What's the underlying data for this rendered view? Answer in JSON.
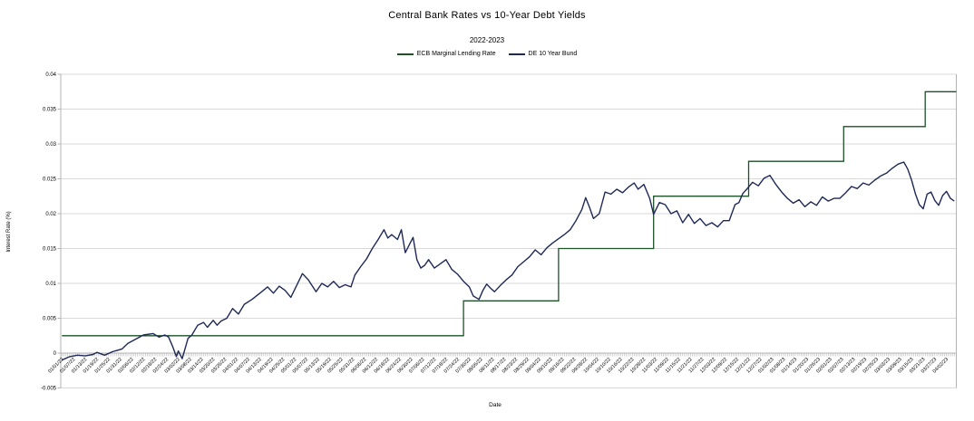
{
  "header": {
    "title": "Central Bank Rates vs 10-Year Debt Yields",
    "subtitle": "2022-2023"
  },
  "axes": {
    "x_label": "Date",
    "y_label": "Interest Rate (%)"
  },
  "colors": {
    "grid": "#d9d9d9",
    "axis": "#b3b3b3",
    "text": "#000000",
    "ecb_green": "#1d5128",
    "bund_navy": "#1f2957"
  },
  "chart_data": {
    "type": "line",
    "title": "Central Bank Rates vs 10-Year Debt Yields",
    "subtitle": "2022-2023",
    "xlabel": "Date",
    "ylabel": "Interest Rate (%)",
    "ylim": [
      -0.005,
      0.04
    ],
    "grid": "horizontal",
    "legend_position": "top-center",
    "y_tick_labels": [
      "-0.005",
      "0",
      "0.005",
      "0.01",
      "0.015",
      "0.02",
      "0.025",
      "0.03",
      "0.035",
      "0.04"
    ],
    "y_tick_values": [
      -0.005,
      0,
      0.005,
      0.01,
      0.015,
      0.02,
      0.025,
      0.03,
      0.035,
      0.04
    ],
    "x_axis": {
      "unit": "days since 01/01/22",
      "domain_days": [
        0,
        461
      ],
      "tick_interval_days": 6,
      "tick_labels": [
        "01/01/22",
        "01/07/22",
        "01/13/22",
        "01/19/22",
        "01/25/22",
        "01/31/22",
        "02/06/22",
        "02/12/22",
        "02/18/22",
        "02/24/22",
        "03/02/22",
        "03/08/22",
        "03/14/22",
        "03/20/22",
        "03/26/22",
        "04/01/22",
        "04/07/22",
        "04/13/22",
        "04/19/22",
        "04/25/22",
        "05/01/22",
        "05/07/22",
        "05/13/22",
        "05/19/22",
        "05/25/22",
        "05/31/22",
        "06/06/22",
        "06/12/22",
        "06/18/22",
        "06/24/22",
        "06/30/22",
        "07/06/22",
        "07/12/22",
        "07/18/22",
        "07/24/22",
        "07/30/22",
        "08/05/22",
        "08/11/22",
        "08/17/22",
        "08/23/22",
        "08/29/22",
        "09/04/22",
        "09/10/22",
        "09/16/22",
        "09/22/22",
        "09/28/22",
        "10/04/22",
        "10/10/22",
        "10/16/22",
        "10/22/22",
        "10/28/22",
        "11/03/22",
        "11/09/22",
        "11/15/22",
        "11/21/22",
        "11/27/22",
        "12/03/22",
        "12/09/22",
        "12/15/22",
        "12/21/22",
        "12/27/22",
        "01/02/23",
        "01/08/23",
        "01/14/23",
        "01/20/23",
        "01/26/23",
        "02/01/23",
        "02/07/23",
        "02/13/23",
        "02/19/23",
        "02/25/23",
        "03/03/23",
        "03/09/23",
        "03/15/23",
        "03/21/23",
        "03/27/23",
        "04/02/23"
      ]
    },
    "series": [
      {
        "name": "ECB Marginal Lending Rate",
        "color": "#1d5128",
        "style": "step",
        "points": [
          [
            0,
            0.0025
          ],
          [
            207,
            0.0025
          ],
          [
            207,
            0.0075
          ],
          [
            256,
            0.0075
          ],
          [
            256,
            0.015
          ],
          [
            305,
            0.015
          ],
          [
            305,
            0.0225
          ],
          [
            354,
            0.0225
          ],
          [
            354,
            0.0275
          ],
          [
            403,
            0.0275
          ],
          [
            403,
            0.0325
          ],
          [
            445,
            0.0325
          ],
          [
            445,
            0.0375
          ],
          [
            461,
            0.0375
          ]
        ]
      },
      {
        "name": "DE 10 Year Bund",
        "color": "#1f2957",
        "style": "line",
        "days": [
          0,
          4,
          8,
          12,
          16,
          18,
          22,
          26,
          31,
          34,
          38,
          42,
          47,
          50,
          53,
          55,
          57,
          59,
          60,
          62,
          65,
          67,
          70,
          73,
          75,
          78,
          80,
          82,
          85,
          88,
          91,
          94,
          98,
          103,
          106,
          109,
          112,
          115,
          118,
          121,
          124,
          127,
          131,
          134,
          137,
          140,
          143,
          146,
          149,
          151,
          154,
          157,
          160,
          163,
          166,
          168,
          170,
          173,
          175,
          177,
          179,
          181,
          183,
          185,
          187,
          189,
          192,
          195,
          198,
          201,
          204,
          207,
          210,
          212,
          215,
          217,
          219,
          221,
          223,
          226,
          229,
          232,
          235,
          238,
          241,
          244,
          247,
          250,
          253,
          256,
          259,
          262,
          265,
          268,
          270,
          272,
          274,
          277,
          280,
          283,
          286,
          289,
          292,
          295,
          297,
          300,
          303,
          305,
          308,
          311,
          314,
          317,
          320,
          323,
          326,
          329,
          332,
          335,
          338,
          341,
          344,
          347,
          349,
          351,
          353,
          356,
          359,
          362,
          365,
          368,
          371,
          374,
          377,
          380,
          383,
          386,
          389,
          392,
          395,
          398,
          401,
          404,
          407,
          410,
          413,
          416,
          419,
          422,
          425,
          428,
          431,
          434,
          436,
          438,
          440,
          442,
          444,
          446,
          448,
          450,
          452,
          454,
          456,
          458,
          460
        ],
        "values": [
          -0.001,
          -0.0005,
          -0.0003,
          -0.0004,
          -0.0002,
          0.0001,
          -0.0003,
          0.0002,
          0.0006,
          0.0014,
          0.002,
          0.0026,
          0.0028,
          0.0023,
          0.0026,
          0.0023,
          0.001,
          -0.0005,
          0.0003,
          -0.0008,
          0.0021,
          0.0026,
          0.004,
          0.0044,
          0.0037,
          0.0047,
          0.004,
          0.0046,
          0.005,
          0.0064,
          0.0056,
          0.007,
          0.0077,
          0.0088,
          0.0095,
          0.0086,
          0.0096,
          0.009,
          0.008,
          0.0097,
          0.0114,
          0.0105,
          0.0088,
          0.01,
          0.0095,
          0.0103,
          0.0094,
          0.0098,
          0.0095,
          0.0112,
          0.0124,
          0.0135,
          0.015,
          0.0163,
          0.0177,
          0.0165,
          0.017,
          0.0163,
          0.0177,
          0.0144,
          0.0155,
          0.0166,
          0.0134,
          0.0122,
          0.0126,
          0.0134,
          0.0122,
          0.0128,
          0.0134,
          0.012,
          0.0113,
          0.0103,
          0.0095,
          0.0082,
          0.0077,
          0.009,
          0.0099,
          0.0093,
          0.0088,
          0.0097,
          0.0105,
          0.0112,
          0.0124,
          0.0131,
          0.0138,
          0.0148,
          0.0141,
          0.0151,
          0.0158,
          0.0164,
          0.017,
          0.0177,
          0.019,
          0.0206,
          0.0223,
          0.0209,
          0.0193,
          0.02,
          0.0231,
          0.0228,
          0.0235,
          0.023,
          0.0238,
          0.0244,
          0.0235,
          0.0242,
          0.0222,
          0.0199,
          0.0216,
          0.0213,
          0.02,
          0.0204,
          0.0187,
          0.0199,
          0.0186,
          0.0193,
          0.0183,
          0.0187,
          0.0181,
          0.019,
          0.019,
          0.0213,
          0.0216,
          0.0229,
          0.0235,
          0.0245,
          0.024,
          0.0251,
          0.0255,
          0.0242,
          0.0231,
          0.0222,
          0.0215,
          0.022,
          0.021,
          0.0217,
          0.0212,
          0.0224,
          0.0218,
          0.0222,
          0.0222,
          0.023,
          0.0239,
          0.0236,
          0.0244,
          0.0241,
          0.0248,
          0.0254,
          0.0258,
          0.0265,
          0.0271,
          0.0274,
          0.0264,
          0.0248,
          0.0228,
          0.0213,
          0.0207,
          0.0228,
          0.0231,
          0.0219,
          0.0212,
          0.0226,
          0.0232,
          0.0222,
          0.0218
        ]
      }
    ]
  }
}
